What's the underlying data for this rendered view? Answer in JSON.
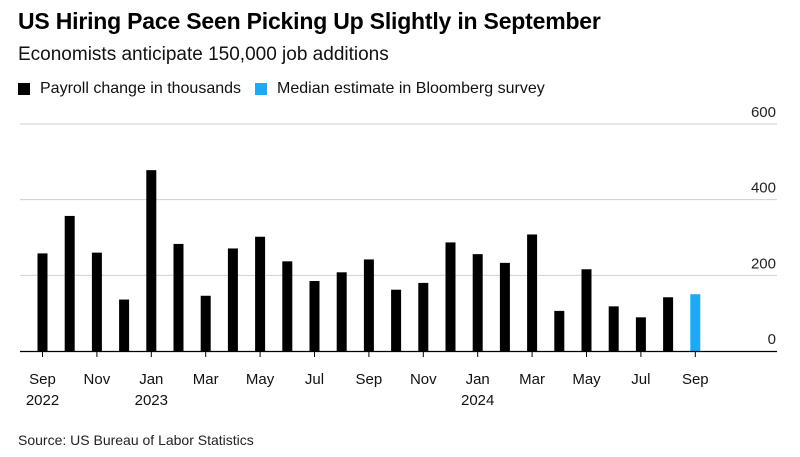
{
  "header": {
    "title": "US Hiring Pace Seen Picking Up Slightly in September",
    "subtitle": "Economists anticipate 150,000 job additions"
  },
  "legend": {
    "items": [
      {
        "label": "Payroll change in thousands",
        "color": "#000000"
      },
      {
        "label": "Median estimate in Bloomberg survey",
        "color": "#1fa9f2"
      }
    ]
  },
  "footer": {
    "source": "Source: US Bureau of Labor Statistics"
  },
  "chart_data": {
    "type": "bar",
    "categories": [
      "Sep 2022",
      "Oct 2022",
      "Nov 2022",
      "Dec 2022",
      "Jan 2023",
      "Feb 2023",
      "Mar 2023",
      "Apr 2023",
      "May 2023",
      "Jun 2023",
      "Jul 2023",
      "Aug 2023",
      "Sep 2023",
      "Oct 2023",
      "Nov 2023",
      "Dec 2023",
      "Jan 2024",
      "Feb 2024",
      "Mar 2024",
      "Apr 2024",
      "May 2024",
      "Jun 2024",
      "Jul 2024",
      "Aug 2024",
      "Sep 2024"
    ],
    "series": [
      {
        "name": "Payroll change in thousands",
        "color": "#000000",
        "values": [
          258,
          357,
          260,
          136,
          478,
          283,
          146,
          271,
          302,
          237,
          185,
          208,
          242,
          162,
          180,
          287,
          256,
          233,
          308,
          106,
          216,
          118,
          89,
          142,
          null
        ]
      },
      {
        "name": "Median estimate in Bloomberg survey",
        "color": "#1fa9f2",
        "values": [
          null,
          null,
          null,
          null,
          null,
          null,
          null,
          null,
          null,
          null,
          null,
          null,
          null,
          null,
          null,
          null,
          null,
          null,
          null,
          null,
          null,
          null,
          null,
          null,
          150
        ]
      }
    ],
    "x_tick_labels": [
      {
        "index": 0,
        "month": "Sep",
        "year": "2022"
      },
      {
        "index": 2,
        "month": "Nov",
        "year": ""
      },
      {
        "index": 4,
        "month": "Jan",
        "year": "2023"
      },
      {
        "index": 6,
        "month": "Mar",
        "year": ""
      },
      {
        "index": 8,
        "month": "May",
        "year": ""
      },
      {
        "index": 10,
        "month": "Jul",
        "year": ""
      },
      {
        "index": 12,
        "month": "Sep",
        "year": ""
      },
      {
        "index": 14,
        "month": "Nov",
        "year": ""
      },
      {
        "index": 16,
        "month": "Jan",
        "year": "2024"
      },
      {
        "index": 18,
        "month": "Mar",
        "year": ""
      },
      {
        "index": 20,
        "month": "May",
        "year": ""
      },
      {
        "index": 22,
        "month": "Jul",
        "year": ""
      },
      {
        "index": 24,
        "month": "Sep",
        "year": ""
      }
    ],
    "y_ticks": [
      0,
      200,
      400,
      600
    ],
    "ylim": [
      0,
      600
    ],
    "yaxis_position": "right",
    "grid": true
  }
}
